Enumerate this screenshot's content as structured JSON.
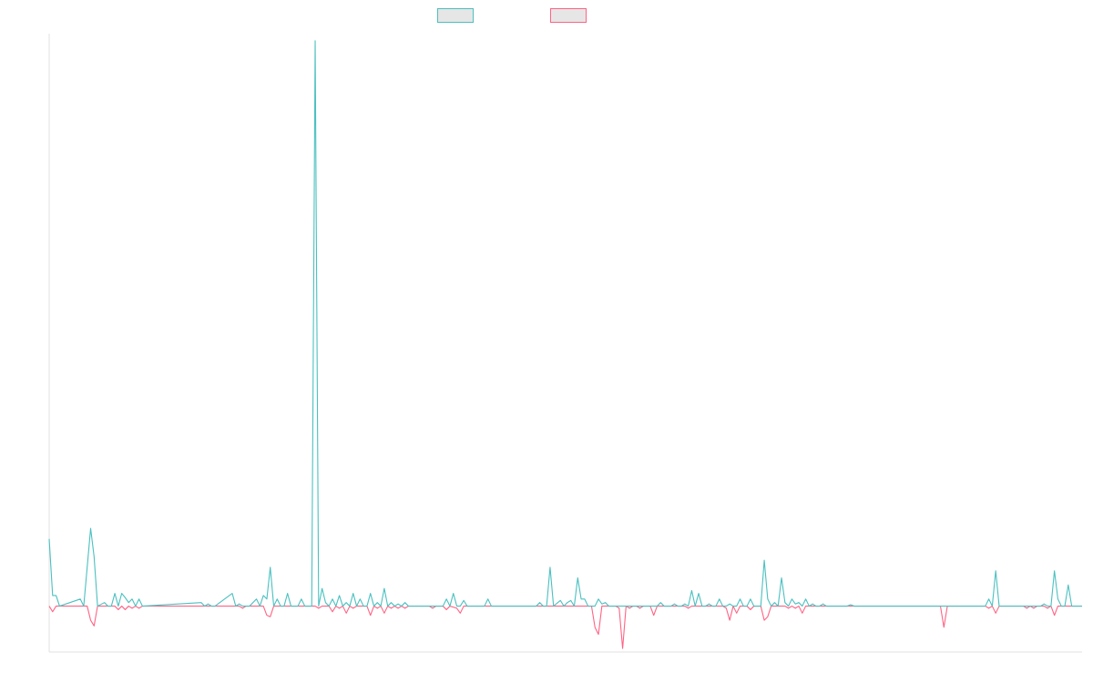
{
  "colors": {
    "series_a": "#4bc0c0",
    "series_b": "#ff6384",
    "axis": "#e0e0e0",
    "legend_fill": "#e6e6e6"
  },
  "legend": {
    "items": [
      {
        "label": "",
        "color": "#4bc0c0"
      },
      {
        "label": "",
        "color": "#ff6384"
      }
    ]
  },
  "chart_data": {
    "type": "line",
    "title": "",
    "xlabel": "",
    "ylabel": "",
    "grid": false,
    "legend_position": "top-center",
    "x_range": [
      0,
      299
    ],
    "ylim": [
      -65,
      810
    ],
    "series": [
      {
        "color": "#4bc0c0",
        "points": [
          [
            0,
            95
          ],
          [
            1,
            15
          ],
          [
            2,
            15
          ],
          [
            3,
            0
          ],
          [
            9,
            10
          ],
          [
            10,
            0
          ],
          [
            12,
            110
          ],
          [
            13,
            70
          ],
          [
            14,
            0
          ],
          [
            16,
            5
          ],
          [
            17,
            0
          ],
          [
            18,
            0
          ],
          [
            19,
            18
          ],
          [
            20,
            0
          ],
          [
            21,
            18
          ],
          [
            22,
            12
          ],
          [
            23,
            5
          ],
          [
            24,
            10
          ],
          [
            25,
            0
          ],
          [
            26,
            10
          ],
          [
            27,
            0
          ],
          [
            44,
            5
          ],
          [
            45,
            0
          ],
          [
            46,
            3
          ],
          [
            47,
            0
          ],
          [
            48,
            0
          ],
          [
            53,
            18
          ],
          [
            54,
            0
          ],
          [
            55,
            3
          ],
          [
            56,
            0
          ],
          [
            58,
            0
          ],
          [
            60,
            10
          ],
          [
            61,
            0
          ],
          [
            62,
            15
          ],
          [
            63,
            10
          ],
          [
            64,
            55
          ],
          [
            65,
            0
          ],
          [
            66,
            10
          ],
          [
            67,
            0
          ],
          [
            68,
            0
          ],
          [
            69,
            18
          ],
          [
            70,
            0
          ],
          [
            72,
            0
          ],
          [
            73,
            10
          ],
          [
            74,
            0
          ],
          [
            76,
            0
          ],
          [
            77,
            800
          ],
          [
            78,
            0
          ],
          [
            79,
            25
          ],
          [
            80,
            5
          ],
          [
            81,
            0
          ],
          [
            82,
            10
          ],
          [
            83,
            0
          ],
          [
            84,
            15
          ],
          [
            85,
            0
          ],
          [
            86,
            5
          ],
          [
            87,
            0
          ],
          [
            88,
            18
          ],
          [
            89,
            0
          ],
          [
            90,
            10
          ],
          [
            91,
            0
          ],
          [
            92,
            0
          ],
          [
            93,
            18
          ],
          [
            94,
            0
          ],
          [
            95,
            5
          ],
          [
            96,
            0
          ],
          [
            97,
            25
          ],
          [
            98,
            0
          ],
          [
            99,
            5
          ],
          [
            100,
            0
          ],
          [
            101,
            3
          ],
          [
            102,
            0
          ],
          [
            103,
            5
          ],
          [
            104,
            0
          ],
          [
            114,
            0
          ],
          [
            115,
            10
          ],
          [
            116,
            0
          ],
          [
            117,
            18
          ],
          [
            118,
            0
          ],
          [
            119,
            0
          ],
          [
            120,
            8
          ],
          [
            121,
            0
          ],
          [
            126,
            0
          ],
          [
            127,
            10
          ],
          [
            128,
            0
          ],
          [
            141,
            0
          ],
          [
            142,
            5
          ],
          [
            143,
            0
          ],
          [
            144,
            0
          ],
          [
            145,
            55
          ],
          [
            146,
            0
          ],
          [
            148,
            8
          ],
          [
            149,
            0
          ],
          [
            150,
            5
          ],
          [
            151,
            8
          ],
          [
            152,
            0
          ],
          [
            153,
            40
          ],
          [
            154,
            10
          ],
          [
            155,
            10
          ],
          [
            156,
            0
          ],
          [
            158,
            0
          ],
          [
            159,
            10
          ],
          [
            160,
            3
          ],
          [
            161,
            5
          ],
          [
            162,
            0
          ],
          [
            168,
            0
          ],
          [
            170,
            0
          ],
          [
            176,
            0
          ],
          [
            177,
            5
          ],
          [
            178,
            0
          ],
          [
            180,
            0
          ],
          [
            181,
            3
          ],
          [
            182,
            0
          ],
          [
            183,
            0
          ],
          [
            184,
            3
          ],
          [
            185,
            0
          ],
          [
            186,
            22
          ],
          [
            187,
            0
          ],
          [
            188,
            18
          ],
          [
            189,
            0
          ],
          [
            190,
            0
          ],
          [
            191,
            3
          ],
          [
            192,
            0
          ],
          [
            193,
            0
          ],
          [
            194,
            10
          ],
          [
            195,
            0
          ],
          [
            196,
            0
          ],
          [
            197,
            3
          ],
          [
            198,
            0
          ],
          [
            199,
            0
          ],
          [
            200,
            10
          ],
          [
            201,
            0
          ],
          [
            202,
            0
          ],
          [
            203,
            10
          ],
          [
            204,
            0
          ],
          [
            205,
            0
          ],
          [
            206,
            0
          ],
          [
            207,
            65
          ],
          [
            208,
            10
          ],
          [
            209,
            0
          ],
          [
            210,
            5
          ],
          [
            211,
            0
          ],
          [
            212,
            40
          ],
          [
            213,
            5
          ],
          [
            214,
            0
          ],
          [
            215,
            10
          ],
          [
            216,
            3
          ],
          [
            217,
            5
          ],
          [
            218,
            0
          ],
          [
            219,
            10
          ],
          [
            220,
            0
          ],
          [
            221,
            3
          ],
          [
            222,
            0
          ],
          [
            223,
            0
          ],
          [
            224,
            3
          ],
          [
            225,
            0
          ],
          [
            231,
            0
          ],
          [
            232,
            2
          ],
          [
            233,
            0
          ],
          [
            258,
            0
          ],
          [
            259,
            0
          ],
          [
            260,
            0
          ],
          [
            271,
            0
          ],
          [
            272,
            10
          ],
          [
            273,
            0
          ],
          [
            274,
            50
          ],
          [
            275,
            0
          ],
          [
            284,
            0
          ],
          [
            285,
            0
          ],
          [
            286,
            0
          ],
          [
            287,
            0
          ],
          [
            288,
            3
          ],
          [
            289,
            0
          ],
          [
            290,
            0
          ],
          [
            291,
            50
          ],
          [
            292,
            10
          ],
          [
            293,
            0
          ],
          [
            294,
            0
          ],
          [
            295,
            30
          ],
          [
            296,
            0
          ],
          [
            297,
            0
          ],
          [
            298,
            0
          ],
          [
            299,
            0
          ]
        ]
      },
      {
        "color": "#ff6384",
        "points": [
          [
            0,
            0
          ],
          [
            1,
            -8
          ],
          [
            2,
            0
          ],
          [
            11,
            0
          ],
          [
            12,
            -20
          ],
          [
            13,
            -28
          ],
          [
            14,
            0
          ],
          [
            19,
            0
          ],
          [
            20,
            -5
          ],
          [
            21,
            0
          ],
          [
            22,
            -5
          ],
          [
            23,
            0
          ],
          [
            24,
            -3
          ],
          [
            25,
            0
          ],
          [
            26,
            -3
          ],
          [
            27,
            0
          ],
          [
            55,
            0
          ],
          [
            56,
            -3
          ],
          [
            57,
            0
          ],
          [
            62,
            0
          ],
          [
            63,
            -13
          ],
          [
            64,
            -15
          ],
          [
            65,
            0
          ],
          [
            77,
            0
          ],
          [
            78,
            -3
          ],
          [
            79,
            0
          ],
          [
            81,
            0
          ],
          [
            82,
            -8
          ],
          [
            83,
            0
          ],
          [
            84,
            -3
          ],
          [
            85,
            0
          ],
          [
            86,
            -10
          ],
          [
            87,
            0
          ],
          [
            88,
            -3
          ],
          [
            89,
            0
          ],
          [
            92,
            0
          ],
          [
            93,
            -13
          ],
          [
            94,
            0
          ],
          [
            95,
            -3
          ],
          [
            96,
            0
          ],
          [
            97,
            -10
          ],
          [
            98,
            0
          ],
          [
            99,
            -3
          ],
          [
            100,
            0
          ],
          [
            101,
            -3
          ],
          [
            102,
            0
          ],
          [
            103,
            -3
          ],
          [
            104,
            0
          ],
          [
            110,
            0
          ],
          [
            111,
            -3
          ],
          [
            112,
            0
          ],
          [
            114,
            0
          ],
          [
            115,
            -5
          ],
          [
            116,
            0
          ],
          [
            118,
            -3
          ],
          [
            119,
            -10
          ],
          [
            120,
            0
          ],
          [
            157,
            0
          ],
          [
            158,
            -30
          ],
          [
            159,
            -40
          ],
          [
            160,
            0
          ],
          [
            164,
            0
          ],
          [
            165,
            -3
          ],
          [
            166,
            -60
          ],
          [
            167,
            0
          ],
          [
            168,
            -3
          ],
          [
            169,
            0
          ],
          [
            170,
            0
          ],
          [
            171,
            -3
          ],
          [
            172,
            0
          ],
          [
            174,
            0
          ],
          [
            175,
            -13
          ],
          [
            176,
            0
          ],
          [
            184,
            0
          ],
          [
            185,
            -3
          ],
          [
            186,
            0
          ],
          [
            195,
            0
          ],
          [
            196,
            -3
          ],
          [
            197,
            -20
          ],
          [
            198,
            0
          ],
          [
            199,
            -10
          ],
          [
            200,
            0
          ],
          [
            202,
            0
          ],
          [
            203,
            -5
          ],
          [
            204,
            0
          ],
          [
            206,
            0
          ],
          [
            207,
            -20
          ],
          [
            208,
            -15
          ],
          [
            209,
            0
          ],
          [
            213,
            0
          ],
          [
            214,
            -3
          ],
          [
            215,
            0
          ],
          [
            216,
            -3
          ],
          [
            217,
            0
          ],
          [
            218,
            -10
          ],
          [
            219,
            0
          ],
          [
            258,
            0
          ],
          [
            259,
            -30
          ],
          [
            260,
            0
          ],
          [
            271,
            0
          ],
          [
            272,
            -3
          ],
          [
            273,
            0
          ],
          [
            274,
            -10
          ],
          [
            275,
            0
          ],
          [
            282,
            0
          ],
          [
            283,
            -3
          ],
          [
            284,
            0
          ],
          [
            285,
            -3
          ],
          [
            286,
            0
          ],
          [
            288,
            0
          ],
          [
            289,
            -3
          ],
          [
            290,
            0
          ],
          [
            291,
            -13
          ],
          [
            292,
            0
          ],
          [
            293,
            0
          ],
          [
            299,
            0
          ]
        ]
      }
    ]
  }
}
